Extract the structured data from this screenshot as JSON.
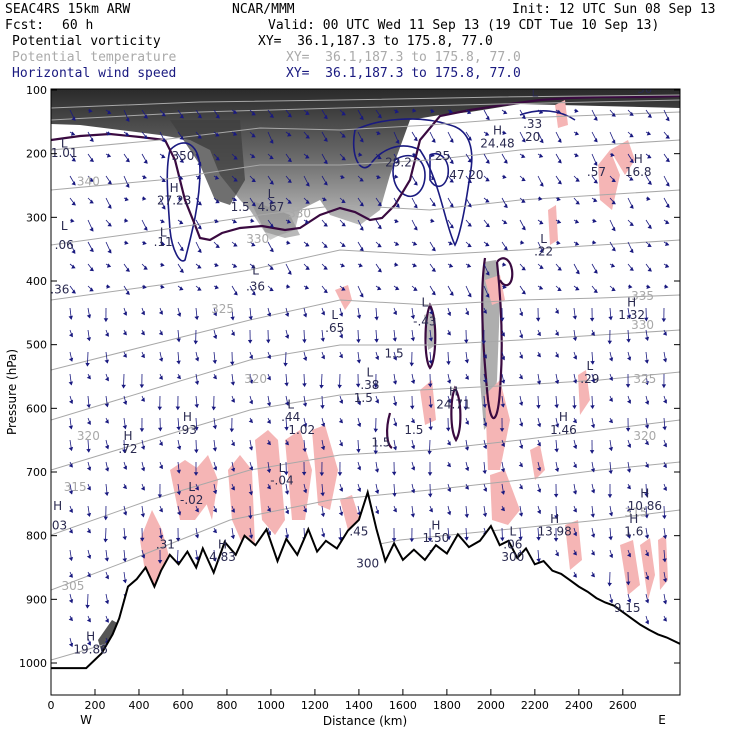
{
  "header": {
    "model": "SEAC4RS 15km ARW",
    "org": "NCAR/MMM",
    "init": "Init: 12 UTC Sun 08 Sep 13",
    "fcst_label": "Fcst:",
    "fcst_value": "60 h",
    "valid": "Valid: 00 UTC Wed 11 Sep 13 (19 CDT Tue 10 Sep 13)"
  },
  "fields": [
    {
      "name": "Potential vorticity",
      "xy": "XY=  36.1,187.3 to 175.8, 77.0",
      "color": "#000000"
    },
    {
      "name": "Potential temperature",
      "xy": "XY=  36.1,187.3 to 175.8, 77.0",
      "color": "#aaaaaa"
    },
    {
      "name": "Horizontal wind speed",
      "xy": "XY=  36.1,187.3 to 175.8, 77.0",
      "color": "#1a1a80"
    }
  ],
  "chart_data": {
    "type": "cross-section",
    "xlabel": "Distance (km)",
    "ylabel": "Pressure (hPa)",
    "xlim": [
      0,
      2860
    ],
    "ylim": [
      1000,
      100
    ],
    "x_ticks": [
      0,
      200,
      400,
      600,
      800,
      1000,
      1200,
      1400,
      1600,
      1800,
      2000,
      2200,
      2400,
      2600
    ],
    "y_ticks": [
      100,
      200,
      300,
      400,
      500,
      600,
      700,
      800,
      900,
      1000
    ],
    "x_tick_labels": [
      "0",
      "200",
      "400",
      "600",
      "800",
      "1000",
      "1200",
      "1400",
      "1600",
      "1800",
      "2000",
      "2200",
      "2400",
      "2600"
    ],
    "y_tick_labels": [
      "100",
      "200",
      "300",
      "400",
      "500",
      "600",
      "700",
      "800",
      "900",
      "1000"
    ],
    "end_labels": {
      "left": "W",
      "right": "E"
    },
    "terrain": [
      [
        0,
        1008
      ],
      [
        160,
        1008
      ],
      [
        230,
        985
      ],
      [
        280,
        955
      ],
      [
        310,
        930
      ],
      [
        350,
        880
      ],
      [
        390,
        868
      ],
      [
        430,
        850
      ],
      [
        470,
        880
      ],
      [
        500,
        855
      ],
      [
        540,
        830
      ],
      [
        580,
        845
      ],
      [
        620,
        825
      ],
      [
        660,
        850
      ],
      [
        690,
        820
      ],
      [
        740,
        858
      ],
      [
        790,
        810
      ],
      [
        840,
        830
      ],
      [
        880,
        800
      ],
      [
        930,
        815
      ],
      [
        980,
        790
      ],
      [
        1030,
        840
      ],
      [
        1070,
        805
      ],
      [
        1120,
        830
      ],
      [
        1170,
        790
      ],
      [
        1210,
        825
      ],
      [
        1250,
        808
      ],
      [
        1300,
        820
      ],
      [
        1350,
        792
      ],
      [
        1400,
        775
      ],
      [
        1440,
        732
      ],
      [
        1480,
        790
      ],
      [
        1520,
        840
      ],
      [
        1560,
        812
      ],
      [
        1600,
        838
      ],
      [
        1650,
        822
      ],
      [
        1700,
        838
      ],
      [
        1750,
        815
      ],
      [
        1800,
        828
      ],
      [
        1850,
        798
      ],
      [
        1900,
        818
      ],
      [
        1950,
        808
      ],
      [
        2000,
        785
      ],
      [
        2040,
        815
      ],
      [
        2080,
        808
      ],
      [
        2120,
        835
      ],
      [
        2160,
        820
      ],
      [
        2200,
        845
      ],
      [
        2240,
        840
      ],
      [
        2280,
        855
      ],
      [
        2320,
        860
      ],
      [
        2360,
        870
      ],
      [
        2400,
        880
      ],
      [
        2440,
        888
      ],
      [
        2480,
        898
      ],
      [
        2520,
        905
      ],
      [
        2560,
        910
      ],
      [
        2600,
        920
      ],
      [
        2640,
        930
      ],
      [
        2680,
        940
      ],
      [
        2720,
        948
      ],
      [
        2760,
        955
      ],
      [
        2800,
        960
      ],
      [
        2860,
        970
      ]
    ],
    "pv_line_labels": [
      {
        "x": 60,
        "p": 190,
        "text": "L"
      },
      {
        "x": 60,
        "p": 205,
        "text": "1.01"
      },
      {
        "x": 600,
        "p": 210,
        "text": "350"
      },
      {
        "x": 560,
        "p": 260,
        "text": "H"
      },
      {
        "x": 560,
        "p": 280,
        "text": "27.23"
      },
      {
        "x": 860,
        "p": 290,
        "text": "1.5"
      },
      {
        "x": 1000,
        "p": 270,
        "text": "L"
      },
      {
        "x": 1000,
        "p": 290,
        "text": "4.67"
      },
      {
        "x": 510,
        "p": 330,
        "text": "L"
      },
      {
        "x": 510,
        "p": 345,
        "text": ".11"
      },
      {
        "x": 60,
        "p": 320,
        "text": "L"
      },
      {
        "x": 60,
        "p": 350,
        "text": ".06"
      },
      {
        "x": 930,
        "p": 390,
        "text": "L"
      },
      {
        "x": 930,
        "p": 415,
        "text": ".36"
      },
      {
        "x": 40,
        "p": 420,
        "text": ".36"
      },
      {
        "x": 1290,
        "p": 460,
        "text": "L"
      },
      {
        "x": 1290,
        "p": 480,
        "text": ".65"
      },
      {
        "x": 1700,
        "p": 440,
        "text": "L"
      },
      {
        "x": 1700,
        "p": 470,
        "text": "-.43"
      },
      {
        "x": 1560,
        "p": 520,
        "text": "1.5"
      },
      {
        "x": 1450,
        "p": 550,
        "text": "L"
      },
      {
        "x": 1450,
        "p": 570,
        "text": ".38"
      },
      {
        "x": 1420,
        "p": 590,
        "text": "1.5"
      },
      {
        "x": 1830,
        "p": 580,
        "text": "H"
      },
      {
        "x": 1830,
        "p": 600,
        "text": "24.71"
      },
      {
        "x": 1090,
        "p": 600,
        "text": "L"
      },
      {
        "x": 1090,
        "p": 620,
        "text": ".44"
      },
      {
        "x": 1140,
        "p": 640,
        "text": "1.02"
      },
      {
        "x": 620,
        "p": 620,
        "text": "H"
      },
      {
        "x": 620,
        "p": 640,
        "text": ".93"
      },
      {
        "x": 1650,
        "p": 640,
        "text": "1.5"
      },
      {
        "x": 1500,
        "p": 660,
        "text": "1.5"
      },
      {
        "x": 350,
        "p": 650,
        "text": "H"
      },
      {
        "x": 350,
        "p": 670,
        "text": ".72"
      },
      {
        "x": 1050,
        "p": 700,
        "text": "L"
      },
      {
        "x": 1050,
        "p": 720,
        "text": "-.04"
      },
      {
        "x": 640,
        "p": 730,
        "text": "L"
      },
      {
        "x": 640,
        "p": 750,
        "text": "-.02"
      },
      {
        "x": 30,
        "p": 760,
        "text": "H"
      },
      {
        "x": 30,
        "p": 790,
        "text": ".03"
      },
      {
        "x": 520,
        "p": 820,
        "text": ".31"
      },
      {
        "x": 780,
        "p": 820,
        "text": "H"
      },
      {
        "x": 780,
        "p": 840,
        "text": "4.83"
      },
      {
        "x": 1400,
        "p": 800,
        "text": ".45"
      },
      {
        "x": 1440,
        "p": 850,
        "text": "300"
      },
      {
        "x": 1750,
        "p": 790,
        "text": "H"
      },
      {
        "x": 1750,
        "p": 810,
        "text": "1.50"
      },
      {
        "x": 2100,
        "p": 800,
        "text": "L"
      },
      {
        "x": 2100,
        "p": 820,
        "text": ".06"
      },
      {
        "x": 2100,
        "p": 840,
        "text": "300"
      },
      {
        "x": 2290,
        "p": 780,
        "text": "H"
      },
      {
        "x": 2290,
        "p": 800,
        "text": "13.98"
      },
      {
        "x": 2700,
        "p": 740,
        "text": "H"
      },
      {
        "x": 2700,
        "p": 760,
        "text": "10.86"
      },
      {
        "x": 2650,
        "p": 780,
        "text": "H"
      },
      {
        "x": 2650,
        "p": 800,
        "text": "1.6"
      },
      {
        "x": 2620,
        "p": 920,
        "text": "9.15"
      },
      {
        "x": 180,
        "p": 965,
        "text": "H"
      },
      {
        "x": 180,
        "p": 985,
        "text": "19.86"
      },
      {
        "x": 2330,
        "p": 620,
        "text": "H"
      },
      {
        "x": 2330,
        "p": 640,
        "text": "1.46"
      },
      {
        "x": 2450,
        "p": 540,
        "text": "L"
      },
      {
        "x": 2450,
        "p": 560,
        "text": ".29"
      },
      {
        "x": 2640,
        "p": 440,
        "text": "H"
      },
      {
        "x": 2640,
        "p": 460,
        "text": "1.32"
      },
      {
        "x": 2240,
        "p": 340,
        "text": "L"
      },
      {
        "x": 2240,
        "p": 360,
        "text": ".22"
      },
      {
        "x": 2670,
        "p": 215,
        "text": "H"
      },
      {
        "x": 2670,
        "p": 235,
        "text": "16.8"
      },
      {
        "x": 2480,
        "p": 235,
        "text": ".57"
      },
      {
        "x": 2030,
        "p": 170,
        "text": "H"
      },
      {
        "x": 2030,
        "p": 190,
        "text": "24.48"
      },
      {
        "x": 1580,
        "p": 220,
        "text": "29.2"
      },
      {
        "x": 1780,
        "p": 210,
        "text": "25"
      },
      {
        "x": 1880,
        "p": 240,
        "text": ".47 20"
      },
      {
        "x": 2190,
        "p": 160,
        "text": ".33"
      },
      {
        "x": 2190,
        "p": 180,
        "text": "20"
      },
      {
        "x": 2200,
        "p": 110,
        "text": "L"
      },
      {
        "x": 2700,
        "p": 105,
        "text": "30"
      }
    ],
    "theta_labels": [
      {
        "x": 170,
        "p": 250,
        "text": "340"
      },
      {
        "x": 1130,
        "p": 300,
        "text": "330"
      },
      {
        "x": 940,
        "p": 340,
        "text": "330"
      },
      {
        "x": 780,
        "p": 450,
        "text": "325"
      },
      {
        "x": 2690,
        "p": 430,
        "text": "335"
      },
      {
        "x": 2690,
        "p": 475,
        "text": "330"
      },
      {
        "x": 930,
        "p": 560,
        "text": "320"
      },
      {
        "x": 2700,
        "p": 560,
        "text": "325"
      },
      {
        "x": 170,
        "p": 650,
        "text": "320"
      },
      {
        "x": 2700,
        "p": 650,
        "text": "320"
      },
      {
        "x": 110,
        "p": 730,
        "text": "315"
      },
      {
        "x": 2660,
        "p": 770,
        "text": "315"
      },
      {
        "x": 100,
        "p": 885,
        "text": "305"
      }
    ]
  }
}
